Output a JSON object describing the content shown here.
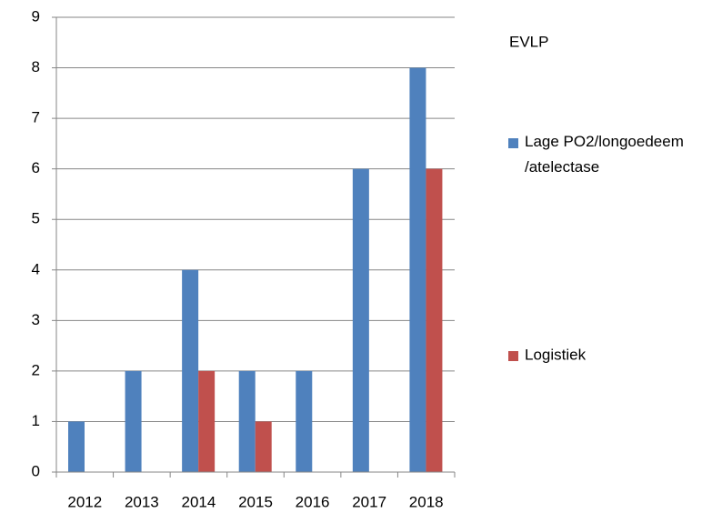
{
  "chart_data": {
    "type": "bar",
    "title": "EVLP",
    "categories": [
      "2012",
      "2013",
      "2014",
      "2015",
      "2016",
      "2017",
      "2018"
    ],
    "series": [
      {
        "name": "Lage PO2/longoedeem/atelectase",
        "color": "#4f81bd",
        "values": [
          1,
          2,
          4,
          2,
          2,
          6,
          8
        ]
      },
      {
        "name": "Logistiek",
        "color": "#c0504d",
        "values": [
          0,
          0,
          2,
          1,
          0,
          0,
          6
        ]
      }
    ],
    "ylim": [
      0,
      9
    ],
    "yticks": [
      0,
      1,
      2,
      3,
      4,
      5,
      6,
      7,
      8,
      9
    ],
    "grid": true,
    "legend": "right"
  }
}
